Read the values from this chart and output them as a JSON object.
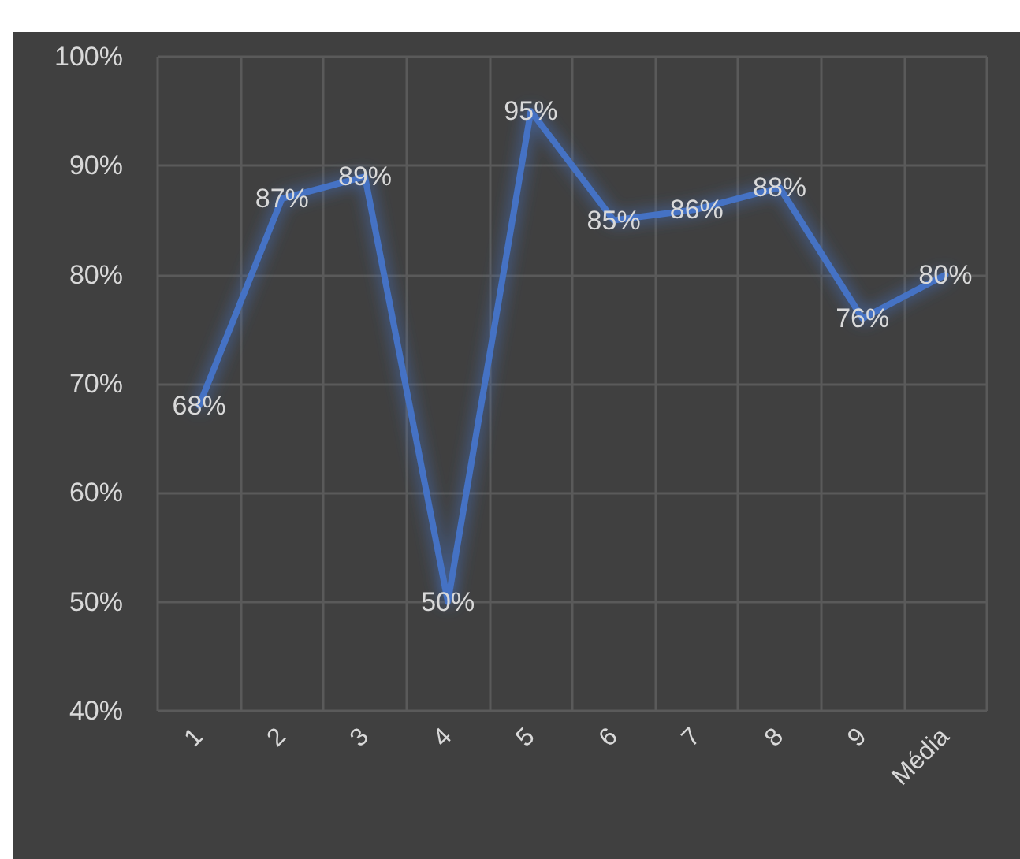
{
  "chart_data": {
    "type": "line",
    "categories": [
      "1",
      "2",
      "3",
      "4",
      "5",
      "6",
      "7",
      "8",
      "9",
      "Média"
    ],
    "series": [
      {
        "color": "#4472c4",
        "values": [
          68,
          87,
          89,
          50,
          95,
          85,
          86,
          88,
          76,
          80
        ],
        "value_labels": [
          "68%",
          "87%",
          "89%",
          "50%",
          "95%",
          "85%",
          "86%",
          "88%",
          "76%",
          "80%"
        ]
      }
    ],
    "ylim": [
      40,
      100
    ],
    "yticks": [
      {
        "value": 40,
        "label": "40%"
      },
      {
        "value": 50,
        "label": "50%"
      },
      {
        "value": 60,
        "label": "60%"
      },
      {
        "value": 70,
        "label": "70%"
      },
      {
        "value": 80,
        "label": "80%"
      },
      {
        "value": 90,
        "label": "90%"
      },
      {
        "value": 100,
        "label": "100%"
      }
    ],
    "grid": true,
    "marker": "none",
    "line_style": "solid"
  }
}
